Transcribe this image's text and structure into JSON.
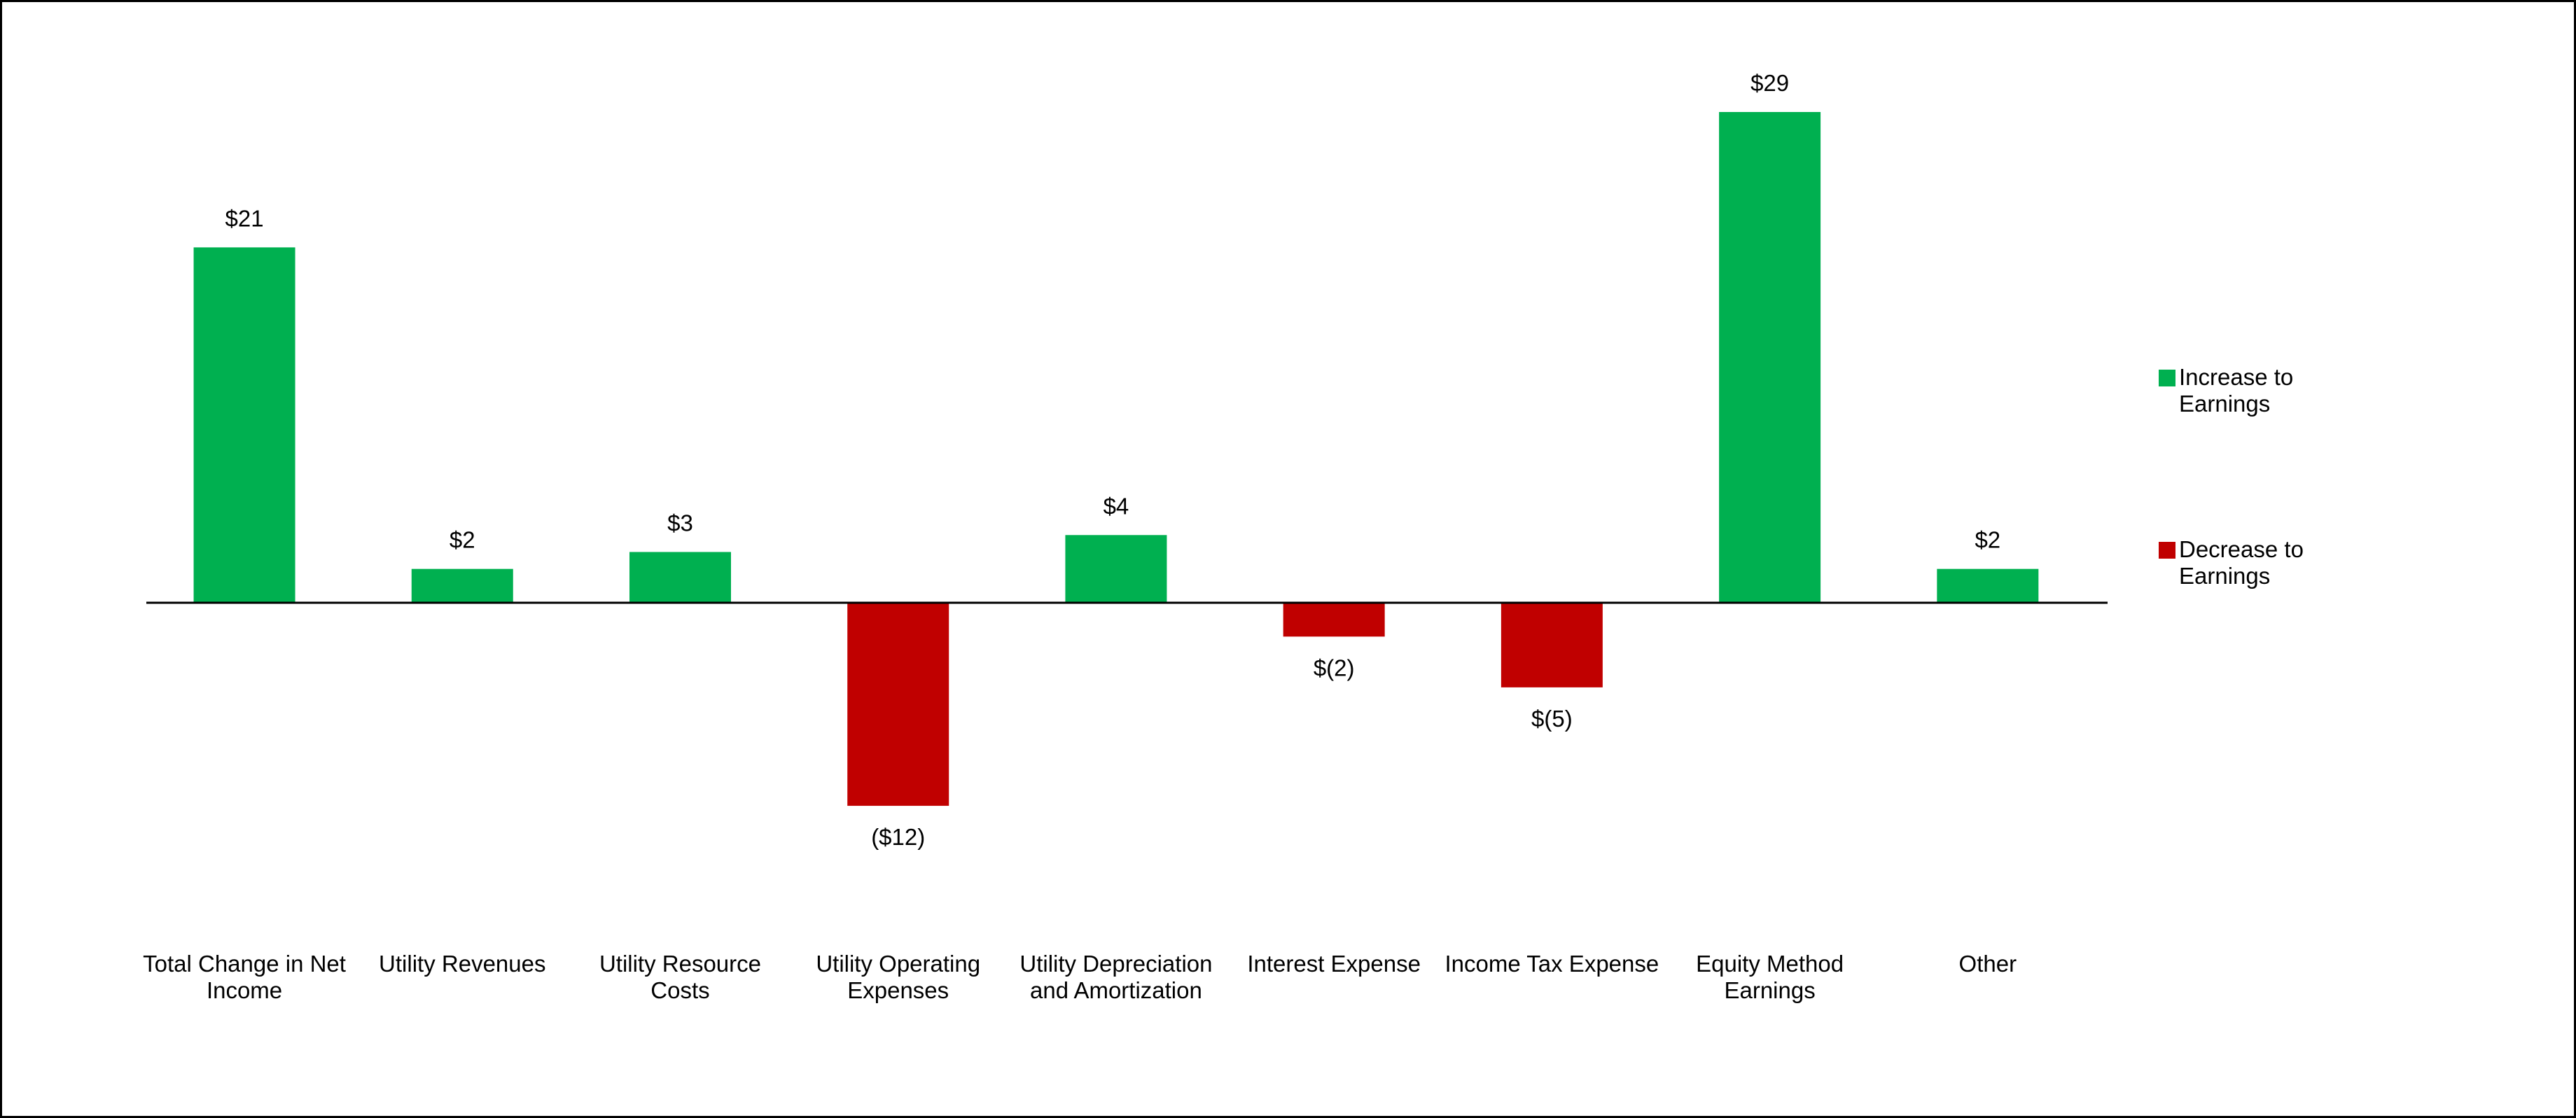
{
  "chart_data": {
    "type": "bar",
    "categories": [
      "Total Change in Net Income",
      "Utility Revenues",
      "Utility Resource Costs",
      "Utility Operating Expenses",
      "Utility Depreciation and Amortization",
      "Interest Expense",
      "Income Tax Expense",
      "Equity Method Earnings",
      "Other"
    ],
    "series": [
      {
        "name": "Increase to Earnings",
        "color": "#00b050",
        "values": [
          21,
          2,
          3,
          null,
          4,
          null,
          null,
          29,
          2
        ],
        "value_labels": [
          "$21",
          "$2",
          "$3",
          null,
          "$4",
          null,
          null,
          "$29",
          "$2"
        ]
      },
      {
        "name": "Decrease to Earnings",
        "color": "#c00000",
        "values": [
          null,
          null,
          null,
          -12,
          null,
          -2,
          -5,
          null,
          null
        ],
        "value_labels": [
          null,
          null,
          null,
          "($12)",
          null,
          "$(2)",
          "$(5)",
          null,
          null
        ]
      }
    ],
    "legend": "right"
  }
}
